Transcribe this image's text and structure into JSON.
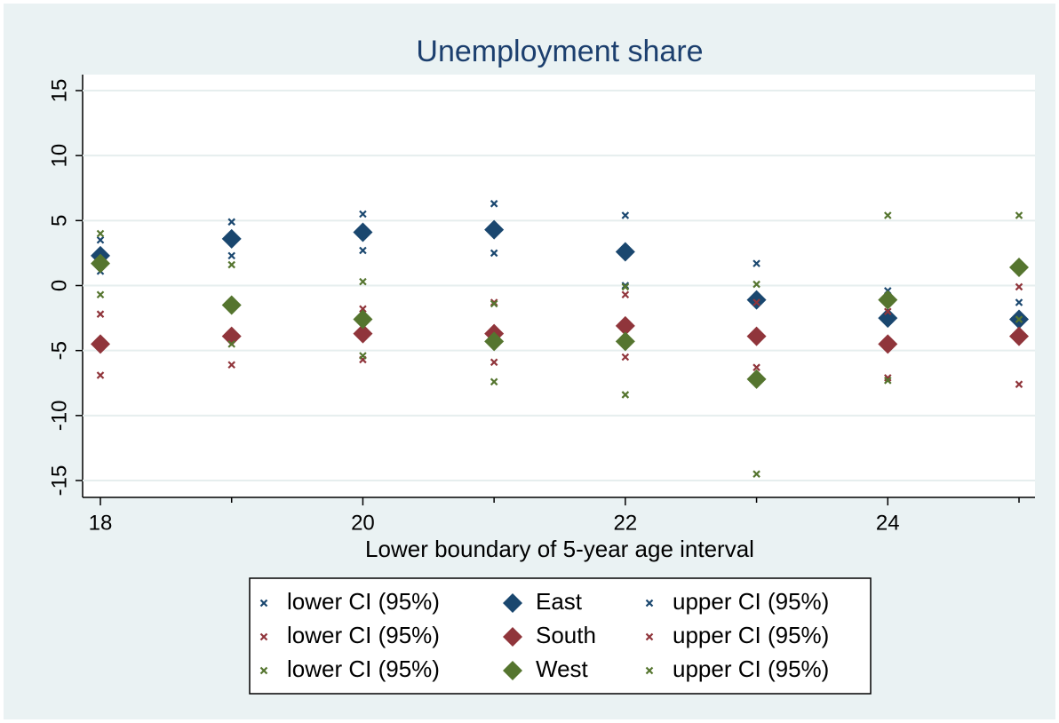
{
  "chart_data": {
    "type": "scatter",
    "title": "Unemployment share",
    "x_label": "Lower boundary of 5-year age interval",
    "x": [
      18,
      19,
      20,
      21,
      22,
      23,
      24,
      25
    ],
    "xlim": [
      18,
      25
    ],
    "xticks": [
      18,
      20,
      22,
      24
    ],
    "xminor_ticks": [
      19,
      21,
      23,
      25
    ],
    "ylim": [
      -15,
      15
    ],
    "yticks": [
      -15,
      -10,
      -5,
      0,
      5,
      10,
      15
    ],
    "grid": true,
    "series": [
      {
        "name": "lower CI (95%)",
        "marker": "x",
        "color": "#1a476f",
        "values": [
          1.1,
          2.3,
          2.7,
          2.5,
          0,
          -3.9,
          -4.6,
          -3.9
        ]
      },
      {
        "name": "East",
        "marker": "diamond",
        "color": "#1a476f",
        "values": [
          2.3,
          3.6,
          4.1,
          4.3,
          2.6,
          -1.1,
          -2.5,
          -2.6
        ]
      },
      {
        "name": "upper CI (95%)",
        "marker": "x",
        "color": "#1a476f",
        "values": [
          3.5,
          4.9,
          5.5,
          6.3,
          5.4,
          1.7,
          -0.4,
          -1.3
        ]
      },
      {
        "name": "lower CI (95%)",
        "marker": "x",
        "color": "#90353b",
        "values": [
          -6.9,
          -6.1,
          -5.7,
          -5.9,
          -5.5,
          -6.3,
          -7.1,
          -7.6
        ]
      },
      {
        "name": "South",
        "marker": "diamond",
        "color": "#90353b",
        "values": [
          -4.5,
          -3.9,
          -3.7,
          -3.7,
          -3.1,
          -3.9,
          -4.5,
          -3.9
        ]
      },
      {
        "name": "upper CI (95%)",
        "marker": "x",
        "color": "#90353b",
        "values": [
          -2.2,
          -1.7,
          -1.8,
          -1.3,
          -0.7,
          -1.3,
          -2.0,
          -0.1
        ]
      },
      {
        "name": "lower CI (95%)",
        "marker": "x",
        "color": "#55752f",
        "values": [
          -0.7,
          -4.5,
          -5.4,
          -7.4,
          -8.4,
          -14.5,
          -7.3,
          -2.6
        ]
      },
      {
        "name": "West",
        "marker": "diamond",
        "color": "#55752f",
        "values": [
          1.7,
          -1.5,
          -2.6,
          -4.3,
          -4.3,
          -7.2,
          -1.1,
          1.4
        ]
      },
      {
        "name": "upper CI (95%)",
        "marker": "x",
        "color": "#55752f",
        "values": [
          4.0,
          1.6,
          0.3,
          -1.4,
          -0.1,
          0.1,
          5.4,
          5.4
        ]
      }
    ]
  }
}
